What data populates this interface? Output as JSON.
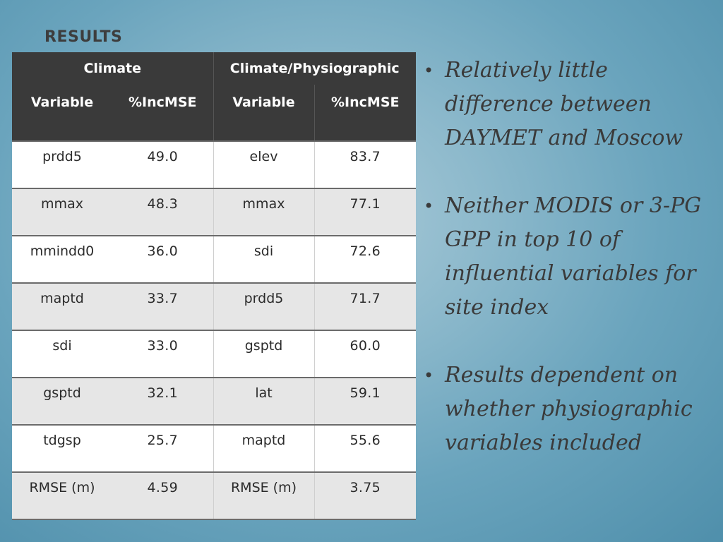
{
  "title": "RESULTS",
  "table": {
    "group_headers": [
      "Climate",
      "Climate/Physiographic"
    ],
    "column_headers": [
      "Variable",
      "%IncMSE",
      "Variable",
      "%IncMSE"
    ],
    "rows": [
      [
        "prdd5",
        "49.0",
        "elev",
        "83.7"
      ],
      [
        "mmax",
        "48.3",
        "mmax",
        "77.1"
      ],
      [
        "mmindd0",
        "36.0",
        "sdi",
        "72.6"
      ],
      [
        "maptd",
        "33.7",
        "prdd5",
        "71.7"
      ],
      [
        "sdi",
        "33.0",
        "gsptd",
        "60.0"
      ],
      [
        "gsptd",
        "32.1",
        "lat",
        "59.1"
      ],
      [
        "tdgsp",
        "25.7",
        "maptd",
        "55.6"
      ],
      [
        "RMSE (m)",
        "4.59",
        "RMSE (m)",
        "3.75"
      ]
    ]
  },
  "bullets": [
    "Relatively little difference  between DAYMET and Moscow",
    "Neither MODIS or 3-PG GPP in top 10 of influential variables for site index",
    "Results dependent on whether physiographic variables included"
  ],
  "colors": {
    "header_bg": "#3a3a3a",
    "row_light": "#ffffff",
    "row_shaded": "#e6e6e6",
    "background": "#7fb1c6"
  }
}
